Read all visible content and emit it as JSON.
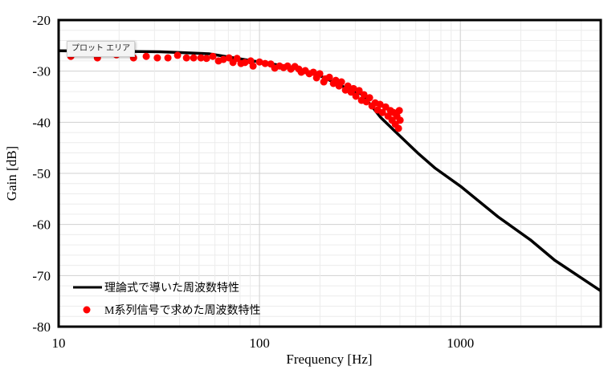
{
  "chart_data": {
    "type": "line+scatter",
    "xlabel": "Frequency [Hz]",
    "ylabel": "Gain [dB]",
    "xscale": "log",
    "xlim": [
      10,
      5000
    ],
    "ylim": [
      -80,
      -20
    ],
    "xticks": [
      10,
      100,
      1000
    ],
    "xtick_labels": [
      "10",
      "100",
      "1000"
    ],
    "yticks": [
      -20,
      -30,
      -40,
      -50,
      -60,
      -70,
      -80
    ],
    "ytick_labels": [
      "-20",
      "-30",
      "-40",
      "-50",
      "-60",
      "-70",
      "-80"
    ],
    "grid": true,
    "legend_position": "bottom-left",
    "series": [
      {
        "name": "理論式で導いた周波数特性",
        "type": "line",
        "color": "#000000",
        "x": [
          10,
          32,
          56,
          100,
          150,
          203,
          260,
          324,
          400,
          465,
          613,
          750,
          1000,
          1540,
          2230,
          2950,
          5000
        ],
        "y": [
          -26,
          -26.2,
          -26.6,
          -28.2,
          -29.3,
          -31,
          -33,
          -34.5,
          -39,
          -41.5,
          -46,
          -49,
          -52.5,
          -58.5,
          -63,
          -67,
          -73
        ]
      },
      {
        "name": "M系列信号で求めた周波数特性",
        "type": "scatter",
        "color": "#ff0000",
        "x": [
          11.5,
          15.6,
          19.4,
          23.6,
          27.3,
          31.0,
          35.0,
          39.1,
          43.3,
          47.0,
          51.1,
          54.5,
          58.6,
          62.5,
          66.1,
          70.5,
          73.8,
          77.3,
          80.9,
          84.7,
          90.4,
          92.9,
          100,
          106.7,
          113.8,
          119.1,
          125.9,
          131.8,
          138,
          143.2,
          150,
          157,
          161.4,
          169,
          177,
          185.4,
          192.3,
          199.5,
          209,
          212.8,
          222.8,
          233.3,
          239.9,
          248.9,
          255.9,
          267.9,
          275.4,
          285.8,
          293.8,
          302,
          313.3,
          322.1,
          331.1,
          340.4,
          353.2,
          363.1,
          376.7,
          387.3,
          398.1,
          409.3,
          424.6,
          436.5,
          448.7,
          457.1,
          465.6,
          474.2,
          483.1,
          492.0,
          496.6,
          501.2
        ],
        "y": [
          -27.1,
          -27.4,
          -26.8,
          -27.4,
          -27.1,
          -27.4,
          -27.4,
          -26.9,
          -27.4,
          -27.4,
          -27.4,
          -27.5,
          -27.1,
          -28.0,
          -27.7,
          -27.4,
          -28.3,
          -27.5,
          -28.5,
          -28.3,
          -28.0,
          -29.0,
          -28.2,
          -28.5,
          -28.6,
          -29.4,
          -29.0,
          -29.3,
          -29.0,
          -29.6,
          -29.1,
          -29.6,
          -30.2,
          -29.9,
          -30.5,
          -30.2,
          -31.3,
          -30.5,
          -32.1,
          -31.5,
          -31.2,
          -32.4,
          -31.8,
          -32.9,
          -32.1,
          -33.7,
          -32.9,
          -34.1,
          -33.4,
          -34.9,
          -33.8,
          -35.7,
          -34.6,
          -36.0,
          -35.2,
          -36.8,
          -36.2,
          -37.6,
          -36.5,
          -38.1,
          -37.0,
          -38.8,
          -37.7,
          -39.6,
          -38.1,
          -40.4,
          -38.8,
          -41.2,
          -37.7,
          -39.6
        ]
      }
    ]
  },
  "tooltip": "プロット エリア"
}
